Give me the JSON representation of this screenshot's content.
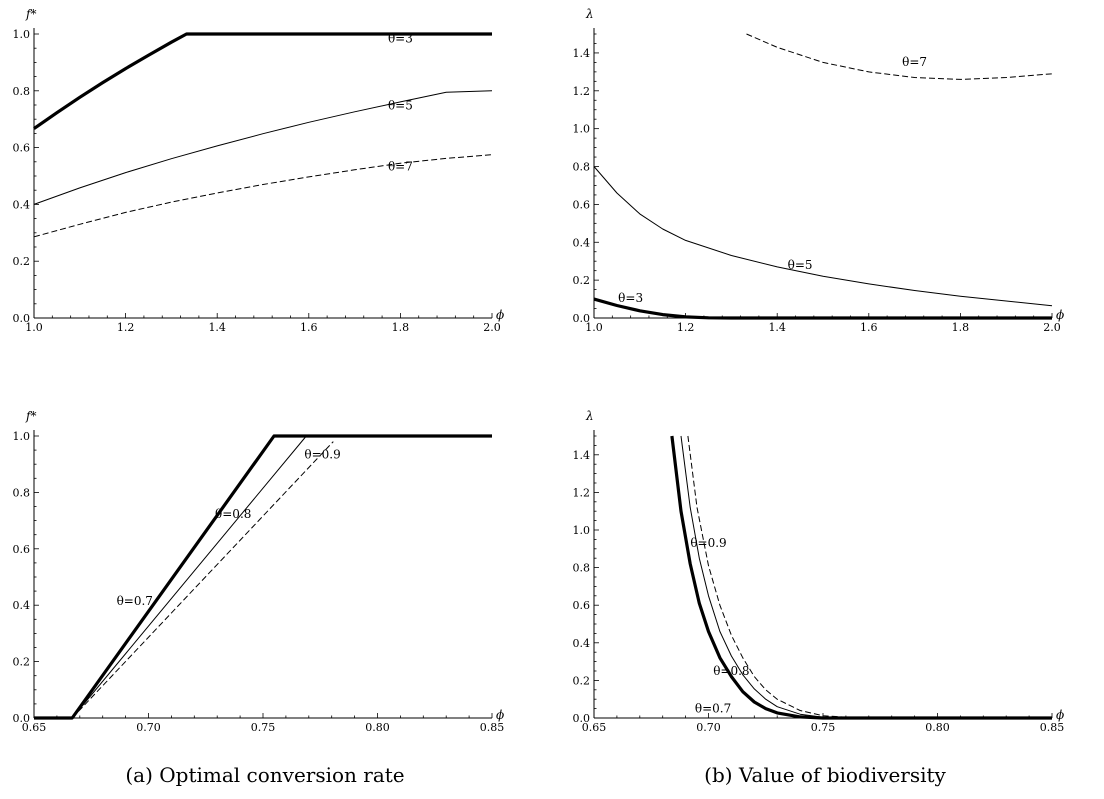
{
  "figure": {
    "captions": [
      "(a) Optimal conversion rate",
      "(b) Value of biodiversity"
    ]
  },
  "chart_data": [
    {
      "type": "line",
      "xlabel": "ϕ",
      "ylabel": "f*",
      "xlim": [
        1.0,
        2.0
      ],
      "ylim": [
        0.0,
        1.0
      ],
      "xticks": [
        "1.0",
        "1.2",
        "1.4",
        "1.6",
        "1.8",
        "2.0"
      ],
      "yticks": [
        "0.0",
        "0.2",
        "0.4",
        "0.6",
        "0.8",
        "1.0"
      ],
      "series": [
        {
          "name": "θ=3",
          "style": "thick",
          "x": [
            1.0,
            1.05,
            1.1,
            1.15,
            1.2,
            1.25,
            1.3,
            1.333,
            1.5,
            1.75,
            2.0
          ],
          "y": [
            0.667,
            0.723,
            0.777,
            0.829,
            0.878,
            0.925,
            0.971,
            1.0,
            1.0,
            1.0,
            1.0
          ]
        },
        {
          "name": "θ=5",
          "style": "thin",
          "x": [
            1.0,
            1.1,
            1.2,
            1.3,
            1.4,
            1.5,
            1.6,
            1.7,
            1.8,
            1.9,
            2.0
          ],
          "y": [
            0.4,
            0.458,
            0.512,
            0.561,
            0.606,
            0.649,
            0.689,
            0.726,
            0.761,
            0.795,
            0.8
          ]
        },
        {
          "name": "θ=7",
          "style": "dashed",
          "x": [
            1.0,
            1.1,
            1.2,
            1.3,
            1.4,
            1.5,
            1.6,
            1.7,
            1.8,
            1.9,
            2.0
          ],
          "y": [
            0.286,
            0.33,
            0.372,
            0.408,
            0.44,
            0.47,
            0.497,
            0.522,
            0.545,
            0.562,
            0.575
          ]
        }
      ],
      "annotations": [
        {
          "text": "θ=3",
          "x": 1.8,
          "y": 0.97
        },
        {
          "text": "θ=5",
          "x": 1.8,
          "y": 0.735
        },
        {
          "text": "θ=7",
          "x": 1.8,
          "y": 0.52
        }
      ]
    },
    {
      "type": "line",
      "xlabel": "ϕ",
      "ylabel": "λ",
      "xlim": [
        1.0,
        2.0
      ],
      "ylim": [
        0.0,
        1.5
      ],
      "xticks": [
        "1.0",
        "1.2",
        "1.4",
        "1.6",
        "1.8",
        "2.0"
      ],
      "yticks": [
        "0.0",
        "0.2",
        "0.4",
        "0.6",
        "0.8",
        "1.0",
        "1.2",
        "1.4"
      ],
      "series": [
        {
          "name": "θ=3",
          "style": "thick",
          "x": [
            1.0,
            1.05,
            1.1,
            1.15,
            1.2,
            1.25,
            1.3,
            1.5,
            2.0
          ],
          "y": [
            0.1,
            0.066,
            0.038,
            0.018,
            0.006,
            0.001,
            0.0,
            0.0,
            0.0
          ]
        },
        {
          "name": "θ=5",
          "style": "thin",
          "x": [
            1.0,
            1.05,
            1.1,
            1.15,
            1.2,
            1.3,
            1.4,
            1.5,
            1.6,
            1.7,
            1.8,
            1.9,
            2.0
          ],
          "y": [
            0.8,
            0.66,
            0.55,
            0.47,
            0.41,
            0.33,
            0.27,
            0.22,
            0.18,
            0.145,
            0.115,
            0.09,
            0.065
          ]
        },
        {
          "name": "θ=7",
          "style": "dashed",
          "x": [
            1.333,
            1.4,
            1.5,
            1.6,
            1.7,
            1.8,
            1.9,
            2.0
          ],
          "y": [
            1.5,
            1.43,
            1.35,
            1.3,
            1.27,
            1.26,
            1.27,
            1.29
          ]
        }
      ],
      "annotations": [
        {
          "text": "θ=7",
          "x": 1.7,
          "y": 1.33
        },
        {
          "text": "θ=5",
          "x": 1.45,
          "y": 0.26
        },
        {
          "text": "θ=3",
          "x": 1.08,
          "y": 0.085
        }
      ]
    },
    {
      "type": "line",
      "xlabel": "ϕ",
      "ylabel": "f*",
      "xlim": [
        0.65,
        0.85
      ],
      "ylim": [
        0.0,
        1.0
      ],
      "xticks": [
        "0.65",
        "0.70",
        "0.75",
        "0.80",
        "0.85"
      ],
      "yticks": [
        "0.0",
        "0.2",
        "0.4",
        "0.6",
        "0.8",
        "1.0"
      ],
      "series": [
        {
          "name": "θ=0.7",
          "style": "thick",
          "x": [
            0.65,
            0.6667,
            0.7548,
            0.85
          ],
          "y": [
            0.0,
            0.0,
            1.0,
            1.0
          ]
        },
        {
          "name": "θ=0.8",
          "style": "thin",
          "x": [
            0.6667,
            0.7689,
            0.85
          ],
          "y": [
            0.0,
            1.0,
            1.0
          ]
        },
        {
          "name": "θ=0.9",
          "style": "dashed",
          "x": [
            0.6667,
            0.7807
          ],
          "y": [
            0.0,
            0.98
          ]
        }
      ],
      "annotations": [
        {
          "text": "θ=0.7",
          "x": 0.694,
          "y": 0.4
        },
        {
          "text": "θ=0.8",
          "x": 0.737,
          "y": 0.71
        },
        {
          "text": "θ=0.9",
          "x": 0.776,
          "y": 0.92
        }
      ]
    },
    {
      "type": "line",
      "xlabel": "ϕ",
      "ylabel": "λ",
      "xlim": [
        0.65,
        0.85
      ],
      "ylim": [
        0.0,
        1.5
      ],
      "xticks": [
        "0.65",
        "0.70",
        "0.75",
        "0.80",
        "0.85"
      ],
      "yticks": [
        "0.0",
        "0.2",
        "0.4",
        "0.6",
        "0.8",
        "1.0",
        "1.2",
        "1.4"
      ],
      "series": [
        {
          "name": "θ=0.7",
          "style": "thick",
          "x": [
            0.684,
            0.688,
            0.692,
            0.696,
            0.7,
            0.705,
            0.71,
            0.715,
            0.72,
            0.725,
            0.73,
            0.74,
            0.75,
            0.76,
            0.85
          ],
          "y": [
            1.5,
            1.1,
            0.82,
            0.61,
            0.46,
            0.32,
            0.22,
            0.14,
            0.085,
            0.05,
            0.027,
            0.006,
            0.0,
            0.0,
            0.0
          ]
        },
        {
          "name": "θ=0.8",
          "style": "thin",
          "x": [
            0.688,
            0.692,
            0.696,
            0.7,
            0.705,
            0.71,
            0.715,
            0.72,
            0.725,
            0.73,
            0.74,
            0.75,
            0.76,
            0.85
          ],
          "y": [
            1.5,
            1.12,
            0.85,
            0.65,
            0.46,
            0.33,
            0.23,
            0.155,
            0.1,
            0.06,
            0.02,
            0.004,
            0.0,
            0.0
          ]
        },
        {
          "name": "θ=0.9",
          "style": "dashed",
          "x": [
            0.691,
            0.695,
            0.7,
            0.705,
            0.71,
            0.715,
            0.72,
            0.725,
            0.73,
            0.74,
            0.75,
            0.765,
            0.85
          ],
          "y": [
            1.5,
            1.12,
            0.81,
            0.6,
            0.44,
            0.32,
            0.22,
            0.15,
            0.1,
            0.04,
            0.012,
            0.0,
            0.0
          ]
        }
      ],
      "annotations": [
        {
          "text": "θ=0.9",
          "x": 0.7,
          "y": 0.91
        },
        {
          "text": "θ=0.8",
          "x": 0.71,
          "y": 0.23
        },
        {
          "text": "θ=0.7",
          "x": 0.702,
          "y": 0.03
        }
      ]
    }
  ]
}
